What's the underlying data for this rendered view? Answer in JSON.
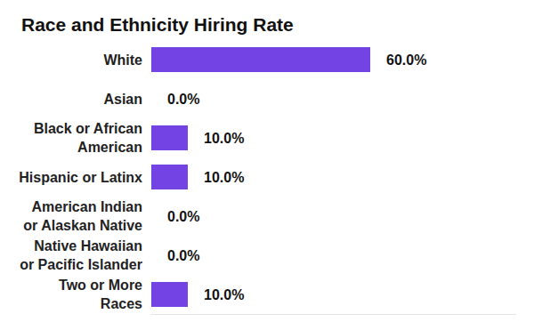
{
  "chart_data": {
    "type": "bar",
    "title": "Race and Ethnicity Hiring Rate",
    "orientation": "horizontal",
    "categories": [
      "White",
      "Asian",
      "Black or African\nAmerican",
      "Hispanic or Latinx",
      "American Indian\nor Alaskan Native",
      "Native Hawaiian\nor Pacific Islander",
      "Two or More\nRaces"
    ],
    "values": [
      60,
      0,
      10,
      10,
      0,
      0,
      10
    ],
    "value_labels": [
      "60.0%",
      "0.0%",
      "10.0%",
      "10.0%",
      "0.0%",
      "0.0%",
      "10.0%"
    ],
    "color": "#7443e3",
    "xlim": [
      0,
      100
    ],
    "grid": false,
    "data_labels": true,
    "tick_labels": "y"
  }
}
